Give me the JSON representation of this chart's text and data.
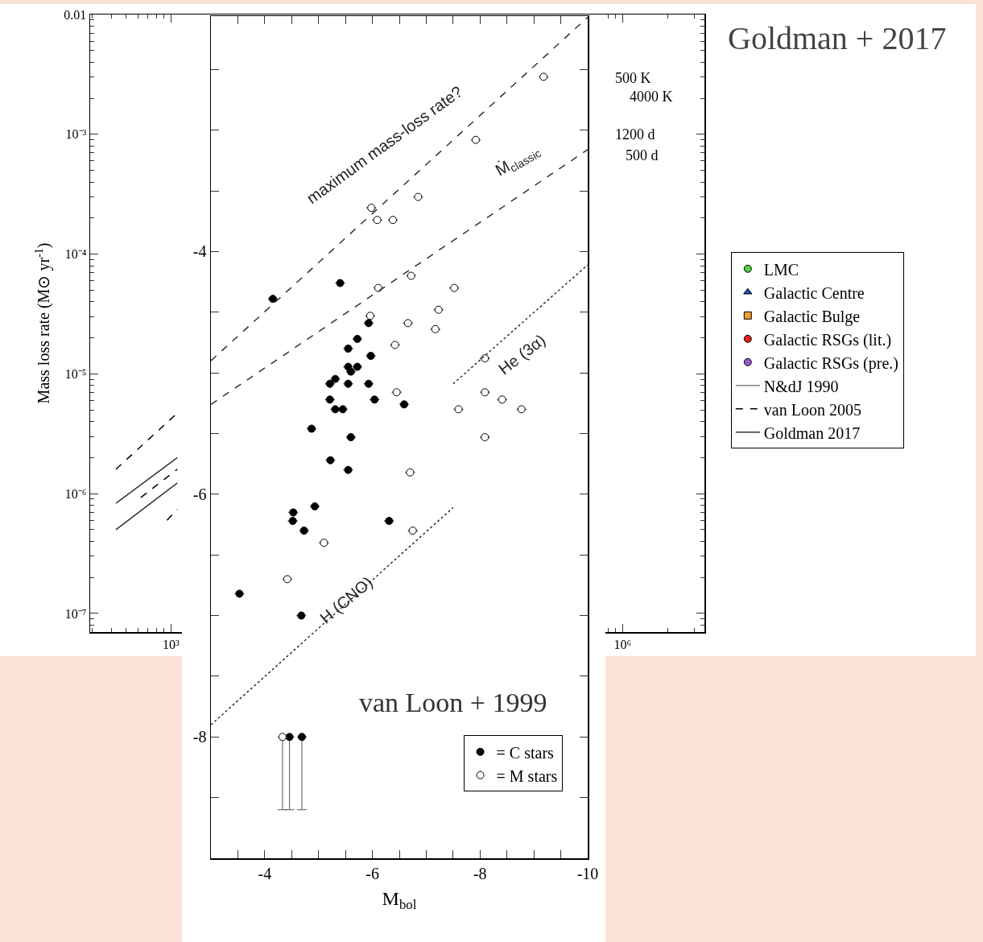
{
  "chart_data": [
    {
      "type": "line",
      "ylabel": "Mass loss rate (M⊙ yr$^{-1}$)",
      "log": "xy",
      "legend": "right",
      "xlim": [
        290,
        3500000
      ],
      "xticks": [
        {
          "value": 1000,
          "label": "10³"
        },
        {
          "value": 1000000,
          "label": "10⁶"
        }
      ],
      "ylim": [
        7e-08,
        0.01
      ],
      "yticks": [
        {
          "value": 1e-07,
          "label": "10⁻⁷"
        },
        {
          "value": 1e-06,
          "label": "10⁻⁶"
        },
        {
          "value": 1e-05,
          "label": "10⁻⁵"
        },
        {
          "value": 0.0001,
          "label": "10⁻⁴"
        },
        {
          "value": 0.001,
          "label": "10⁻³"
        },
        0.01
      ],
      "annotations": [
        "Goldman + 2017",
        "500 K",
        "4000 K",
        "1200 d",
        "500 d"
      ],
      "series": [
        {
          "name": "LMC",
          "type": "scatter",
          "marker": "circle",
          "color": "#4cd43a"
        },
        {
          "name": "Galactic Centre",
          "type": "scatter",
          "marker": "triangle",
          "color": "#1f4fb4"
        },
        {
          "name": "Galactic Bulge",
          "type": "scatter",
          "marker": "square",
          "color": "#e8a030"
        },
        {
          "name": "Galactic RSGs (lit.)",
          "type": "scatter",
          "marker": "circle",
          "color": "#e0201c"
        },
        {
          "name": "Galactic RSGs (pre.)",
          "type": "scatter",
          "marker": "circle",
          "color": "#9b59d0"
        },
        {
          "name": "N&dJ 1990",
          "line_style": "solid",
          "color": "#808080"
        },
        {
          "name": "van Loon 2005",
          "line_style": "dashed",
          "color": "#000000",
          "x": [
            430,
            1100
          ],
          "values": [
            1.6e-06,
            4.7e-06
          ]
        },
        {
          "line_style": "dashed",
          "color": "#000000",
          "x": [
            630,
            1100
          ],
          "values": [
            9.3e-07,
            1.6e-06
          ]
        },
        {
          "line_style": "dashed",
          "color": "#000000",
          "x": [
            940,
            1100
          ],
          "values": [
            6e-07,
            7.4e-07
          ]
        },
        {
          "name": "Goldman 2017",
          "line_style": "solid",
          "color": "#333333",
          "x": [
            430,
            1100
          ],
          "values": [
            8.3e-07,
            2e-06
          ]
        },
        {
          "line_style": "solid",
          "color": "#333333",
          "x": [
            430,
            1100
          ],
          "values": [
            5e-07,
            1.23e-06
          ]
        }
      ]
    },
    {
      "type": "scatter",
      "xlabel": "M$_{bol}$",
      "legend": "bottom right",
      "xlim": [
        -3,
        -10
      ],
      "xticks": [
        {
          "value": -3.5,
          "label": null
        },
        -4,
        {
          "value": -4.5,
          "label": null
        },
        {
          "value": -5,
          "label": null
        },
        {
          "value": -5.5,
          "label": null
        },
        -6,
        {
          "value": -6.5,
          "label": null
        },
        {
          "value": -7,
          "label": null
        },
        {
          "value": -7.5,
          "label": null
        },
        -8,
        {
          "value": -8.5,
          "label": null
        },
        {
          "value": -9,
          "label": null
        },
        {
          "value": -9.5,
          "label": null
        },
        -10
      ],
      "ylim": [
        -9,
        -2.06
      ],
      "yticks": [
        {
          "value": -8.5,
          "label": null
        },
        -8,
        {
          "value": -7.5,
          "label": null
        },
        {
          "value": -7,
          "label": null
        },
        {
          "value": -6.5,
          "label": null
        },
        -6,
        {
          "value": -5.5,
          "label": null
        },
        {
          "value": -5,
          "label": null
        },
        {
          "value": -4.5,
          "label": null
        },
        -4,
        {
          "value": -3.5,
          "label": null
        },
        {
          "value": -3,
          "label": null
        },
        {
          "value": -2.5,
          "label": null
        }
      ],
      "annotations": [
        "van Loon + 1999",
        "maximum mass-loss rate?",
        "Ṁ$_{classic}$",
        "He (3α)",
        "H (CNO)"
      ],
      "series": [
        {
          "name": "= C stars",
          "marker": "circle",
          "color": "#000000",
          "x": [
            -4.15,
            -5.4,
            -5.93,
            -5.72,
            -5.55,
            -5.97,
            -5.55,
            -5.72,
            -5.6,
            -5.31,
            -5.21,
            -5.55,
            -5.93,
            -5.21,
            -6.04,
            -6.59,
            -5.31,
            -5.45,
            -4.87,
            -5.6,
            -5.22,
            -5.55,
            -4.93,
            -4.53,
            -4.52,
            -4.73,
            -6.31,
            -3.53,
            -4.68,
            -4.46,
            -4.69
          ],
          "values": [
            -4.39,
            -4.26,
            -4.59,
            -4.72,
            -4.8,
            -4.86,
            -4.95,
            -4.95,
            -4.99,
            -5.05,
            -5.09,
            -5.09,
            -5.09,
            -5.22,
            -5.22,
            -5.26,
            -5.3,
            -5.3,
            -5.46,
            -5.53,
            -5.72,
            -5.8,
            -6.1,
            -6.15,
            -6.22,
            -6.3,
            -6.22,
            -6.82,
            -7.0,
            -8.0,
            -8.0
          ],
          "errors": [
            null,
            null,
            null,
            null,
            null,
            null,
            null,
            null,
            null,
            null,
            null,
            null,
            null,
            null,
            null,
            null,
            null,
            null,
            null,
            null,
            null,
            null,
            null,
            null,
            null,
            null,
            null,
            null,
            null,
            [
              -8.6,
              -8.0
            ],
            [
              -8.6,
              -8.0
            ]
          ]
        },
        {
          "name": "= M stars",
          "marker": "circle",
          "color": "#ffffff",
          "x": [
            -9.18,
            -7.92,
            -6.85,
            -5.98,
            -6.09,
            -6.38,
            -6.72,
            -6.11,
            -7.52,
            -7.23,
            -6.66,
            -7.17,
            -5.96,
            -6.42,
            -8.09,
            -6.45,
            -8.09,
            -8.41,
            -7.6,
            -8.77,
            -8.09,
            -6.7,
            -6.75,
            -5.1,
            -4.42,
            -4.33
          ],
          "values": [
            -2.56,
            -3.08,
            -3.55,
            -3.64,
            -3.74,
            -3.74,
            -4.2,
            -4.3,
            -4.3,
            -4.48,
            -4.59,
            -4.64,
            -4.53,
            -4.77,
            -4.88,
            -5.16,
            -5.16,
            -5.22,
            -5.3,
            -5.3,
            -5.53,
            -5.82,
            -6.3,
            -6.4,
            -6.7,
            -8.0
          ],
          "errors": [
            null,
            null,
            null,
            null,
            null,
            null,
            null,
            null,
            null,
            null,
            null,
            null,
            null,
            null,
            null,
            null,
            null,
            null,
            null,
            null,
            null,
            null,
            null,
            null,
            null,
            [
              -8.6,
              -8.0
            ]
          ]
        },
        {
          "type": "line",
          "line_style": "dashed",
          "color": "#333333",
          "x": [
            -3,
            -10
          ],
          "values": [
            -4.9,
            -2.07
          ]
        },
        {
          "type": "line",
          "line_style": "dashed",
          "color": "#333333",
          "x": [
            -3,
            -10
          ],
          "values": [
            -5.26,
            -3.16
          ]
        },
        {
          "type": "line",
          "line_style": "dotted",
          "color": "#333333",
          "x": [
            -7.5,
            -10
          ],
          "values": [
            -5.09,
            -4.11
          ]
        },
        {
          "type": "line",
          "line_style": "dotted",
          "color": "#333333",
          "x": [
            -3,
            -7.5
          ],
          "values": [
            -7.9,
            -6.11
          ]
        }
      ]
    }
  ]
}
